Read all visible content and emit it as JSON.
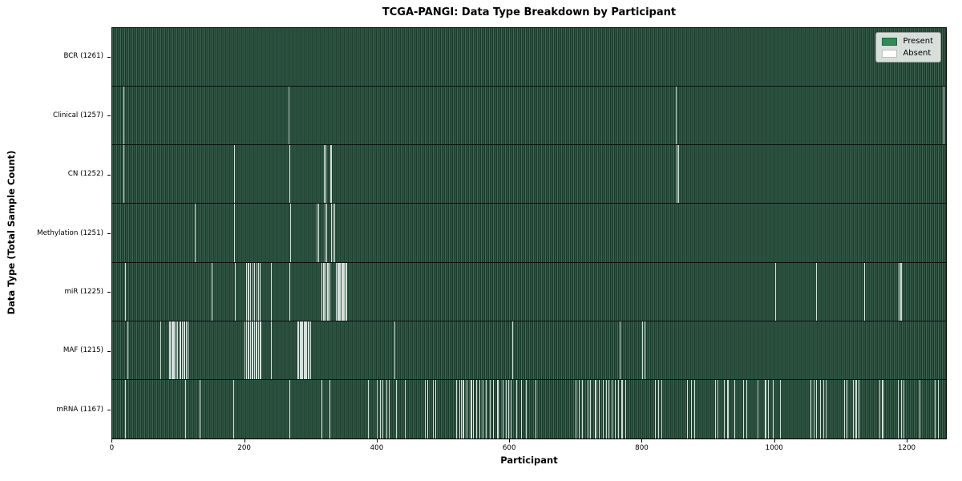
{
  "chart_data": {
    "type": "heatmap",
    "title": "TCGA-PANGI: Data Type Breakdown by Participant",
    "xlabel": "Participant",
    "ylabel": "Data Type (Total Sample Count)",
    "total_participants": 1261,
    "xlim": [
      -0.5,
      1260.5
    ],
    "x_ticks": [
      0,
      200,
      400,
      600,
      800,
      1000,
      1200
    ],
    "grid": false,
    "legend": {
      "position": "upper right",
      "entries": [
        {
          "label": "Present",
          "color": "#2e8b57"
        },
        {
          "label": "Absent",
          "color": "#ffffff"
        }
      ]
    },
    "colors": {
      "present_light": "#3f6b54",
      "present_dark_edge": "#1b3a2c",
      "absent_line": "#ffffff",
      "row_divider": "#0d0d0d",
      "plot_border": "#000000"
    },
    "rows": [
      {
        "label": "BCR (1261)",
        "data_type": "BCR",
        "present_count": 1261,
        "absent_participants": []
      },
      {
        "label": "Clinical (1257)",
        "data_type": "Clinical",
        "present_count": 1257,
        "absent_participants": [
          16,
          266,
          852,
          1257
        ]
      },
      {
        "label": "CN (1252)",
        "data_type": "CN",
        "present_count": 1252,
        "absent_participants": [
          16,
          184,
          267,
          320,
          322,
          329,
          331,
          853,
          855
        ]
      },
      {
        "label": "Methylation (1251)",
        "data_type": "Methylation",
        "present_count": 1251,
        "absent_participants": [
          124,
          184,
          269,
          309,
          311,
          321,
          323,
          331,
          333,
          335
        ]
      },
      {
        "label": "miR (1225)",
        "data_type": "miR",
        "present_count": 1225,
        "absent_participants": [
          19,
          150,
          185,
          202,
          204,
          206,
          208,
          212,
          214,
          218,
          220,
          222,
          240,
          267,
          316,
          318,
          320,
          322,
          324,
          326,
          328,
          338,
          340,
          342,
          344,
          346,
          348,
          350,
          352,
          354,
          1002,
          1064,
          1137,
          1189,
          1191,
          1193
        ]
      },
      {
        "label": "MAF (1215)",
        "data_type": "MAF",
        "present_count": 1215,
        "absent_participants": [
          22,
          72,
          85,
          87,
          89,
          91,
          93,
          95,
          98,
          101,
          103,
          105,
          107,
          109,
          111,
          113,
          200,
          202,
          204,
          206,
          208,
          210,
          212,
          214,
          216,
          218,
          220,
          222,
          224,
          240,
          279,
          281,
          283,
          285,
          287,
          289,
          291,
          293,
          295,
          297,
          299,
          426,
          605,
          767,
          801,
          805
        ]
      },
      {
        "label": "mRNA (1167)",
        "data_type": "mRNA",
        "present_count": 1167,
        "absent_participants": [
          19,
          110,
          132,
          182,
          267,
          316,
          328,
          386,
          400,
          404,
          408,
          414,
          418,
          429,
          442,
          472,
          476,
          484,
          488,
          520,
          525,
          527,
          529,
          531,
          535,
          542,
          545,
          550,
          555,
          560,
          565,
          570,
          575,
          582,
          590,
          595,
          598,
          602,
          610,
          618,
          625,
          640,
          700,
          705,
          710,
          718,
          722,
          730,
          735,
          742,
          746,
          750,
          755,
          760,
          765,
          770,
          775,
          820,
          825,
          830,
          869,
          875,
          880,
          911,
          915,
          925,
          930,
          940,
          954,
          959,
          975,
          987,
          991,
          999,
          1009,
          1055,
          1060,
          1064,
          1070,
          1075,
          1079,
          1106,
          1110,
          1120,
          1124,
          1128,
          1160,
          1164,
          1188,
          1192,
          1196,
          1220,
          1244,
          1248
        ]
      }
    ]
  }
}
